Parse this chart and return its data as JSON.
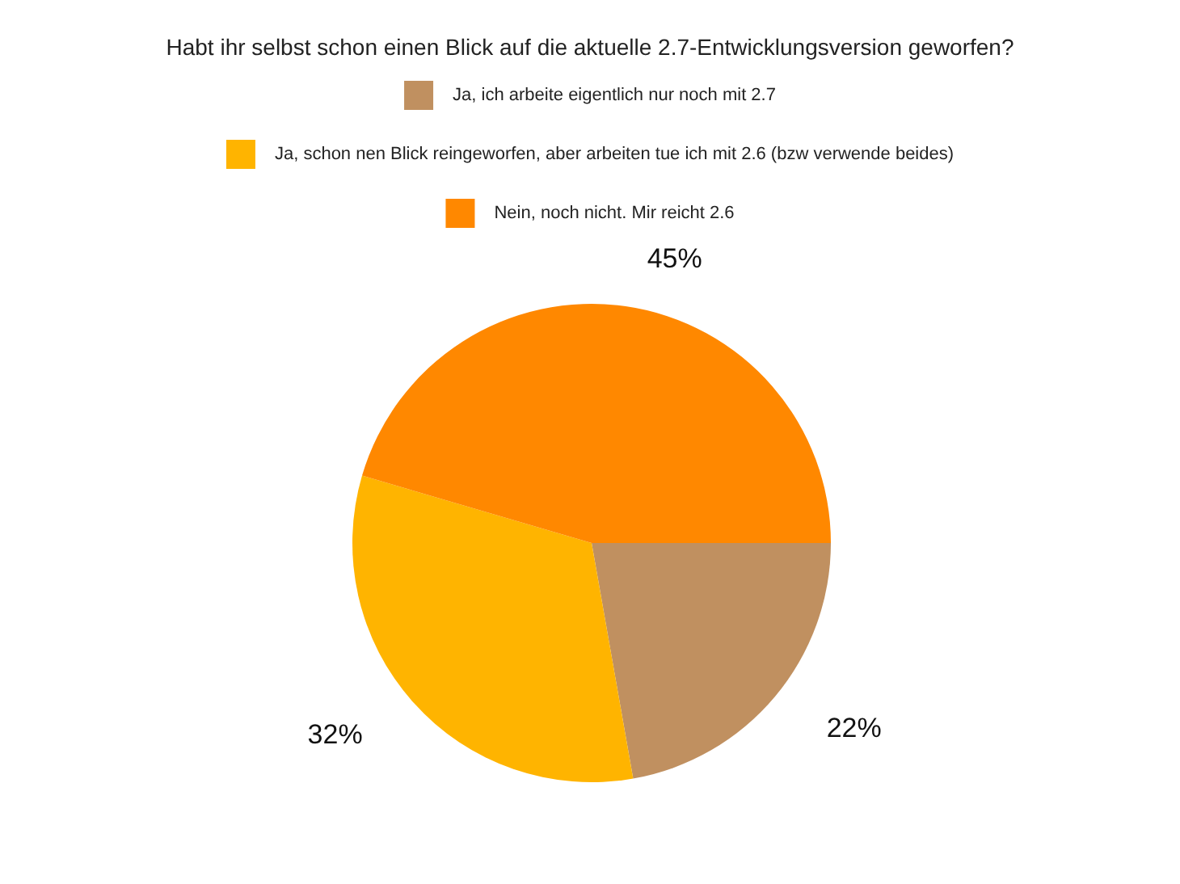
{
  "chart_data": {
    "type": "pie",
    "title": "Habt ihr selbst schon einen Blick auf die aktuelle 2.7-Entwicklungsversion geworfen?",
    "categories": [
      "Ja, ich arbeite eigentlich nur noch mit 2.7",
      "Ja, schon nen Blick reingeworfen, aber arbeiten tue ich mit 2.6 (bzw verwende beides)",
      "Nein, noch nicht. Mir reicht 2.6"
    ],
    "values": [
      22,
      32,
      45
    ],
    "value_labels": [
      "22%",
      "32%",
      "45%"
    ],
    "colors": [
      "#c09060",
      "#ffb400",
      "#ff8800"
    ],
    "legend": "top"
  }
}
